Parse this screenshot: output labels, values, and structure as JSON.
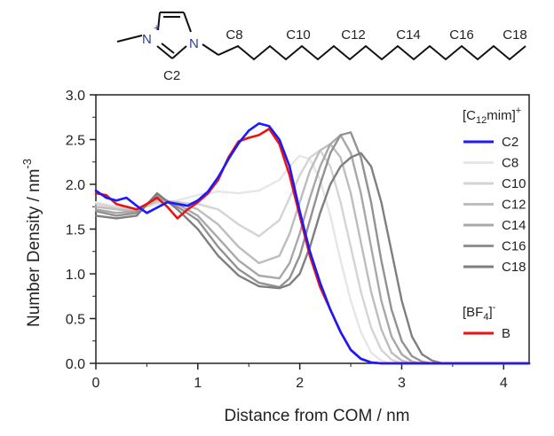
{
  "molecule": {
    "nplus": "N",
    "plus": "+",
    "n": "N",
    "c2": "C2",
    "carbon_labels": [
      "C8",
      "C10",
      "C12",
      "C14",
      "C16",
      "C18"
    ]
  },
  "chart_data": {
    "type": "line",
    "xlabel": "Distance from COM / nm",
    "ylabel": "Number Density / nm",
    "ylabel_sup": "-3",
    "xlim": [
      0,
      4.25
    ],
    "ylim": [
      0,
      3.0
    ],
    "xticks": [
      "0",
      "1",
      "2",
      "3",
      "4"
    ],
    "yticks": [
      "0.0",
      "0.5",
      "1.0",
      "1.5",
      "2.0",
      "2.5",
      "3.0"
    ],
    "grid": false,
    "legend": {
      "placement": "right",
      "cation_group": {
        "prefix": "[C",
        "sub": "12",
        "mid": "mim]",
        "sup": "+"
      },
      "anion_group": {
        "prefix": "[BF",
        "sub": "4",
        "mid": "]",
        "sup": "-"
      }
    },
    "series": [
      {
        "name": "C2",
        "group": "cation",
        "color": "#1a1aff",
        "width": 2.6,
        "points": [
          [
            0,
            1.93
          ],
          [
            0.1,
            1.85
          ],
          [
            0.2,
            1.82
          ],
          [
            0.3,
            1.85
          ],
          [
            0.4,
            1.76
          ],
          [
            0.5,
            1.68
          ],
          [
            0.6,
            1.74
          ],
          [
            0.7,
            1.8
          ],
          [
            0.8,
            1.78
          ],
          [
            0.9,
            1.76
          ],
          [
            1.0,
            1.82
          ],
          [
            1.1,
            1.92
          ],
          [
            1.2,
            2.08
          ],
          [
            1.3,
            2.28
          ],
          [
            1.4,
            2.46
          ],
          [
            1.5,
            2.6
          ],
          [
            1.6,
            2.68
          ],
          [
            1.7,
            2.65
          ],
          [
            1.8,
            2.5
          ],
          [
            1.9,
            2.2
          ],
          [
            2.0,
            1.7
          ],
          [
            2.1,
            1.25
          ],
          [
            2.2,
            0.9
          ],
          [
            2.3,
            0.6
          ],
          [
            2.4,
            0.35
          ],
          [
            2.5,
            0.15
          ],
          [
            2.6,
            0.05
          ],
          [
            2.7,
            0.01
          ],
          [
            2.8,
            0.0
          ],
          [
            4.25,
            0.0
          ]
        ]
      },
      {
        "name": "C8",
        "group": "cation",
        "color": "#e6e6e6",
        "width": 2.4,
        "points": [
          [
            0,
            1.8
          ],
          [
            0.2,
            1.75
          ],
          [
            0.4,
            1.72
          ],
          [
            0.6,
            1.78
          ],
          [
            0.8,
            1.82
          ],
          [
            1.0,
            1.88
          ],
          [
            1.2,
            1.92
          ],
          [
            1.4,
            1.9
          ],
          [
            1.6,
            1.93
          ],
          [
            1.8,
            2.05
          ],
          [
            1.9,
            2.2
          ],
          [
            2.0,
            2.32
          ],
          [
            2.1,
            2.28
          ],
          [
            2.2,
            2.05
          ],
          [
            2.3,
            1.65
          ],
          [
            2.4,
            1.15
          ],
          [
            2.5,
            0.7
          ],
          [
            2.6,
            0.35
          ],
          [
            2.7,
            0.12
          ],
          [
            2.8,
            0.03
          ],
          [
            2.9,
            0.0
          ],
          [
            4.25,
            0.0
          ]
        ]
      },
      {
        "name": "C10",
        "group": "cation",
        "color": "#d4d4d4",
        "width": 2.4,
        "points": [
          [
            0,
            1.78
          ],
          [
            0.2,
            1.74
          ],
          [
            0.4,
            1.72
          ],
          [
            0.6,
            1.8
          ],
          [
            0.8,
            1.8
          ],
          [
            1.0,
            1.78
          ],
          [
            1.2,
            1.72
          ],
          [
            1.4,
            1.55
          ],
          [
            1.6,
            1.42
          ],
          [
            1.8,
            1.6
          ],
          [
            1.9,
            1.85
          ],
          [
            2.0,
            2.1
          ],
          [
            2.1,
            2.3
          ],
          [
            2.2,
            2.38
          ],
          [
            2.3,
            2.2
          ],
          [
            2.4,
            1.8
          ],
          [
            2.5,
            1.3
          ],
          [
            2.6,
            0.8
          ],
          [
            2.7,
            0.4
          ],
          [
            2.8,
            0.15
          ],
          [
            2.9,
            0.04
          ],
          [
            3.0,
            0.0
          ],
          [
            4.25,
            0.0
          ]
        ]
      },
      {
        "name": "C12",
        "group": "cation",
        "color": "#bdbdbd",
        "width": 2.4,
        "points": [
          [
            0,
            1.75
          ],
          [
            0.2,
            1.72
          ],
          [
            0.4,
            1.7
          ],
          [
            0.6,
            1.82
          ],
          [
            0.8,
            1.8
          ],
          [
            1.0,
            1.72
          ],
          [
            1.2,
            1.55
          ],
          [
            1.4,
            1.3
          ],
          [
            1.6,
            1.12
          ],
          [
            1.8,
            1.2
          ],
          [
            1.9,
            1.45
          ],
          [
            2.0,
            1.8
          ],
          [
            2.1,
            2.15
          ],
          [
            2.2,
            2.38
          ],
          [
            2.3,
            2.45
          ],
          [
            2.4,
            2.3
          ],
          [
            2.5,
            1.9
          ],
          [
            2.6,
            1.35
          ],
          [
            2.7,
            0.8
          ],
          [
            2.8,
            0.38
          ],
          [
            2.9,
            0.12
          ],
          [
            3.0,
            0.03
          ],
          [
            3.1,
            0.0
          ],
          [
            4.25,
            0.0
          ]
        ]
      },
      {
        "name": "C14",
        "group": "cation",
        "color": "#a8a8a8",
        "width": 2.4,
        "points": [
          [
            0,
            1.72
          ],
          [
            0.2,
            1.68
          ],
          [
            0.4,
            1.7
          ],
          [
            0.6,
            1.85
          ],
          [
            0.8,
            1.78
          ],
          [
            1.0,
            1.65
          ],
          [
            1.2,
            1.4
          ],
          [
            1.4,
            1.15
          ],
          [
            1.6,
            0.98
          ],
          [
            1.8,
            0.95
          ],
          [
            1.9,
            1.12
          ],
          [
            2.0,
            1.45
          ],
          [
            2.1,
            1.85
          ],
          [
            2.2,
            2.2
          ],
          [
            2.3,
            2.45
          ],
          [
            2.4,
            2.55
          ],
          [
            2.5,
            2.35
          ],
          [
            2.6,
            1.9
          ],
          [
            2.7,
            1.3
          ],
          [
            2.8,
            0.7
          ],
          [
            2.9,
            0.3
          ],
          [
            3.0,
            0.1
          ],
          [
            3.1,
            0.02
          ],
          [
            3.2,
            0.0
          ],
          [
            4.25,
            0.0
          ]
        ]
      },
      {
        "name": "C16",
        "group": "cation",
        "color": "#929292",
        "width": 2.4,
        "points": [
          [
            0,
            1.7
          ],
          [
            0.2,
            1.65
          ],
          [
            0.4,
            1.68
          ],
          [
            0.6,
            1.88
          ],
          [
            0.8,
            1.75
          ],
          [
            1.0,
            1.6
          ],
          [
            1.2,
            1.3
          ],
          [
            1.4,
            1.05
          ],
          [
            1.6,
            0.9
          ],
          [
            1.8,
            0.85
          ],
          [
            1.9,
            0.95
          ],
          [
            2.0,
            1.2
          ],
          [
            2.1,
            1.6
          ],
          [
            2.2,
            2.0
          ],
          [
            2.3,
            2.35
          ],
          [
            2.4,
            2.55
          ],
          [
            2.5,
            2.58
          ],
          [
            2.6,
            2.3
          ],
          [
            2.7,
            1.8
          ],
          [
            2.8,
            1.15
          ],
          [
            2.9,
            0.6
          ],
          [
            3.0,
            0.25
          ],
          [
            3.1,
            0.08
          ],
          [
            3.2,
            0.02
          ],
          [
            3.3,
            0.0
          ],
          [
            4.25,
            0.0
          ]
        ]
      },
      {
        "name": "C18",
        "group": "cation",
        "color": "#7f7f7f",
        "width": 2.4,
        "points": [
          [
            0,
            1.65
          ],
          [
            0.2,
            1.62
          ],
          [
            0.4,
            1.65
          ],
          [
            0.6,
            1.9
          ],
          [
            0.8,
            1.72
          ],
          [
            1.0,
            1.5
          ],
          [
            1.2,
            1.2
          ],
          [
            1.4,
            0.98
          ],
          [
            1.6,
            0.86
          ],
          [
            1.8,
            0.84
          ],
          [
            1.9,
            0.88
          ],
          [
            2.0,
            1.0
          ],
          [
            2.1,
            1.3
          ],
          [
            2.2,
            1.68
          ],
          [
            2.3,
            2.0
          ],
          [
            2.4,
            2.2
          ],
          [
            2.5,
            2.3
          ],
          [
            2.6,
            2.35
          ],
          [
            2.7,
            2.2
          ],
          [
            2.8,
            1.8
          ],
          [
            2.9,
            1.25
          ],
          [
            3.0,
            0.7
          ],
          [
            3.1,
            0.3
          ],
          [
            3.2,
            0.1
          ],
          [
            3.3,
            0.03
          ],
          [
            3.4,
            0.0
          ],
          [
            4.25,
            0.0
          ]
        ]
      },
      {
        "name": "B",
        "group": "anion",
        "color": "#ee1111",
        "width": 2.6,
        "points": [
          [
            0,
            1.9
          ],
          [
            0.1,
            1.88
          ],
          [
            0.2,
            1.78
          ],
          [
            0.3,
            1.75
          ],
          [
            0.4,
            1.72
          ],
          [
            0.5,
            1.78
          ],
          [
            0.6,
            1.85
          ],
          [
            0.7,
            1.75
          ],
          [
            0.8,
            1.62
          ],
          [
            0.9,
            1.72
          ],
          [
            1.0,
            1.8
          ],
          [
            1.1,
            1.9
          ],
          [
            1.2,
            2.05
          ],
          [
            1.3,
            2.3
          ],
          [
            1.4,
            2.48
          ],
          [
            1.5,
            2.52
          ],
          [
            1.6,
            2.55
          ],
          [
            1.7,
            2.62
          ],
          [
            1.8,
            2.45
          ],
          [
            1.9,
            2.1
          ],
          [
            2.0,
            1.65
          ],
          [
            2.1,
            1.2
          ],
          [
            2.2,
            0.85
          ],
          [
            2.3,
            0.6
          ],
          [
            2.4,
            0.35
          ],
          [
            2.5,
            0.15
          ],
          [
            2.6,
            0.05
          ],
          [
            2.7,
            0.01
          ],
          [
            2.8,
            0.0
          ],
          [
            4.25,
            0.0
          ]
        ]
      }
    ]
  }
}
